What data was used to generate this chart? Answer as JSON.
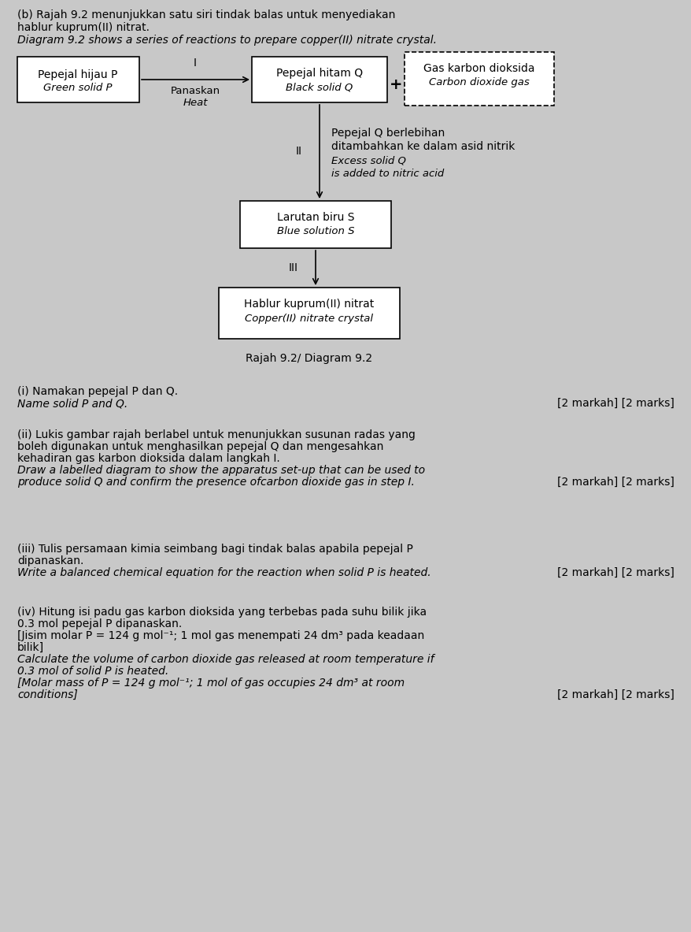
{
  "bg_color": "#c8c8c8",
  "title_line1": "(b) Rajah 9.2 menunjukkan satu siri tindak balas untuk menyediakan",
  "title_line2": "hablur kuprum(II) nitrat.",
  "title_line3": "Diagram 9.2 shows a series of reactions to prepare copper(II) nitrate crystal.",
  "box_green_line1": "Pepejal hijau P",
  "box_green_line2": "Green solid P",
  "box_black_line1": "Pepejal hitam Q",
  "box_black_line2": "Black solid Q",
  "box_co2_line1": "Gas karbon dioksida",
  "box_co2_line2": "Carbon dioxide gas",
  "box_blue_line1": "Larutan biru S",
  "box_blue_line2": "Blue solution S",
  "box_crystal_line1": "Hablur kuprum(II) nitrat",
  "box_crystal_line2": "Copper(II) nitrate crystal",
  "step_I_label": "I",
  "panaskan": "Panaskan",
  "heat": "Heat",
  "step_II_label": "II",
  "step_II_text_line1": "Pepejal Q berlebihan",
  "step_II_text_line2": "ditambahkan ke dalam asid nitrik",
  "step_II_text_line3": "Excess solid Q",
  "step_II_text_line4": "is added to nitric acid",
  "step_III_label": "III",
  "plus_sign": "+",
  "caption": "Rajah 9.2/ Diagram 9.2",
  "q_i_malay": "(i) Namakan pepejal P dan Q.",
  "q_i_english": "Name solid P and Q.",
  "q_i_marks": "[2 markah] [2 marks]",
  "q_ii_malay_1": "(ii) Lukis gambar rajah berlabel untuk menunjukkan susunan radas yang",
  "q_ii_malay_2": "boleh digunakan untuk menghasilkan pepejal Q dan mengesahkan",
  "q_ii_malay_3": "kehadiran gas karbon dioksida dalam langkah I.",
  "q_ii_english_1": "Draw a labelled diagram to show the apparatus set-up that can be used to",
  "q_ii_english_2": "produce solid Q and confirm the presence of​carbon dioxide gas in step I.",
  "q_ii_marks": "[2 markah] [2 marks]",
  "q_iii_malay_1": "(iii) Tulis persamaan kimia seimbang bagi tindak balas apabila pepejal P",
  "q_iii_malay_2": "dipanaskan.",
  "q_iii_english": "Write a balanced chemical equation for the reaction when solid P is heated.",
  "q_iii_marks": "[2 markah] [2 marks]",
  "q_iv_malay_1": "(iv) Hitung isi padu gas karbon dioksida yang terbebas pada suhu bilik jika",
  "q_iv_malay_2": "0.3 mol pepejal P dipanaskan.",
  "q_iv_malay_3": "[Jisim molar P = 124 g mol⁻¹; 1 mol gas menempati 24 dm³ pada keadaan",
  "q_iv_malay_4": "bilik]",
  "q_iv_english_1": "Calculate the volume of carbon dioxide gas released at room temperature if",
  "q_iv_english_2": "0.3 mol of solid P is heated.",
  "q_iv_english_3": "[Molar mass of P = 124 g mol⁻¹; 1 mol of gas occupies 24 dm³ at room",
  "q_iv_english_4": "conditions]",
  "q_iv_marks": "[2 markah] [2 marks]"
}
